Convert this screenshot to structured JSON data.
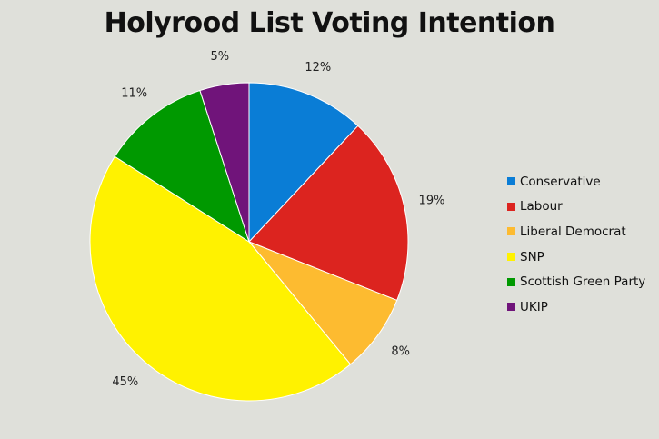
{
  "chart_data": {
    "type": "pie",
    "title": "Holyrood List Voting Intention",
    "slices": [
      {
        "label": "Conservative",
        "value": 12,
        "display": "12%",
        "color": "#0a7dd6"
      },
      {
        "label": "Labour",
        "value": 19,
        "display": "19%",
        "color": "#dc241f"
      },
      {
        "label": "Liberal Democrat",
        "value": 8,
        "display": "8%",
        "color": "#fdbb30"
      },
      {
        "label": "SNP",
        "value": 45,
        "display": "45%",
        "color": "#fff200"
      },
      {
        "label": "Scottish Green Party",
        "value": 11,
        "display": "11%",
        "color": "#009900"
      },
      {
        "label": "UKIP",
        "value": 5,
        "display": "5%",
        "color": "#70147a"
      }
    ],
    "legend_position": "right",
    "start_angle": "12 o'clock, clockwise"
  }
}
